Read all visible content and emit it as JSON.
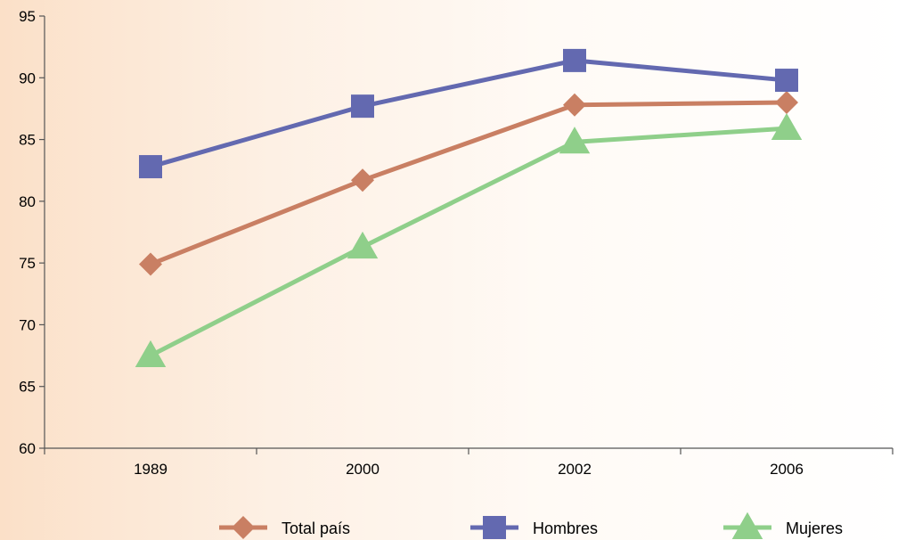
{
  "chart_data": {
    "type": "line",
    "categories": [
      "1989",
      "2000",
      "2002",
      "2006"
    ],
    "ylim": [
      60,
      95
    ],
    "yticks": [
      60,
      65,
      70,
      75,
      80,
      85,
      90,
      95
    ],
    "grid": false,
    "legend_position": "bottom",
    "series": [
      {
        "name": "Total país",
        "values": [
          74.9,
          81.7,
          87.8,
          88.0
        ],
        "color": "#c97f63",
        "marker": "diamond"
      },
      {
        "name": "Hombres",
        "values": [
          82.8,
          87.7,
          91.4,
          89.8
        ],
        "color": "#6369b0",
        "marker": "square"
      },
      {
        "name": "Mujeres",
        "values": [
          67.5,
          76.3,
          84.8,
          85.9
        ],
        "color": "#8fcf8a",
        "marker": "triangle"
      }
    ]
  }
}
